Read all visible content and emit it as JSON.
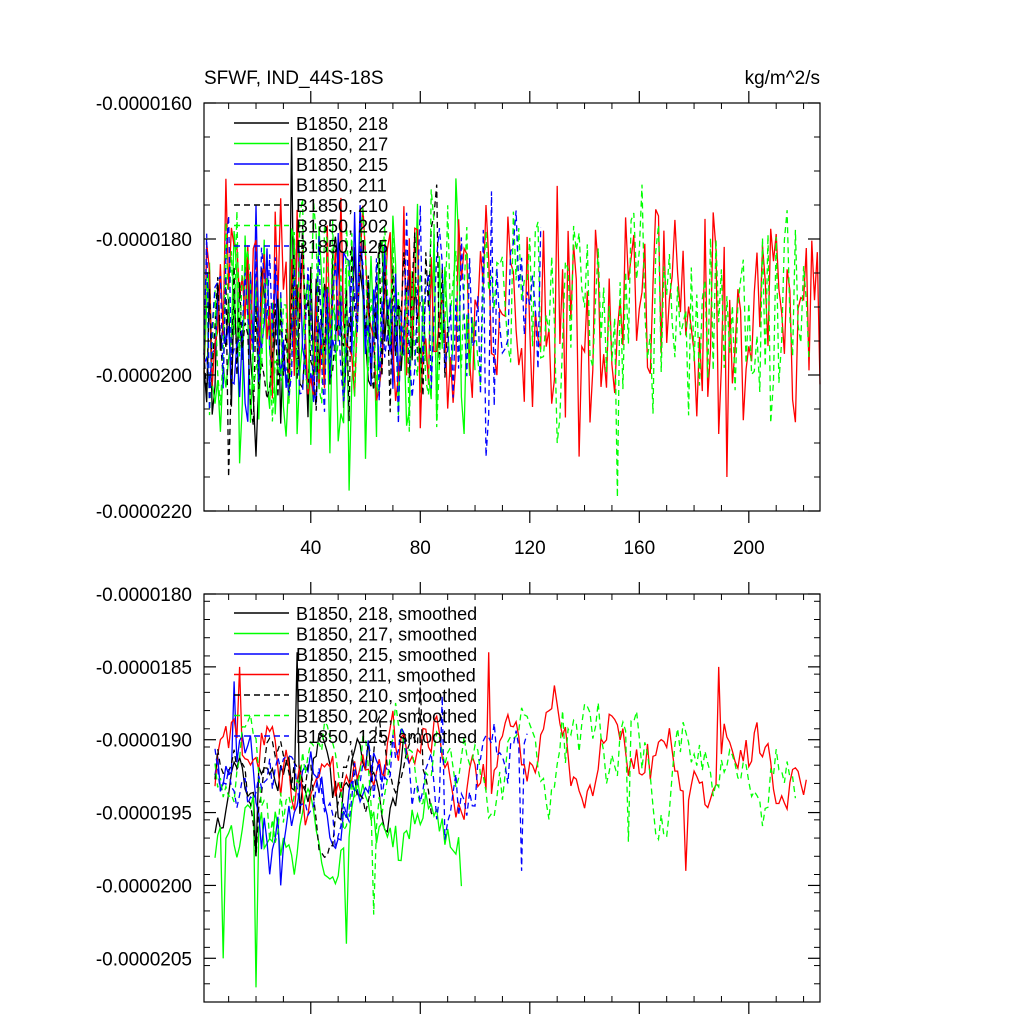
{
  "chart_data": [
    {
      "type": "line",
      "title_left": "SFWF, IND_44S-18S",
      "title_right": "kg/m^2/s",
      "xlim": [
        1,
        226
      ],
      "ylim": [
        -2.2e-05,
        -1.6e-05
      ],
      "x_ticks": [
        40,
        80,
        120,
        160,
        200
      ],
      "x_tick_labels": [
        "40",
        "80",
        "120",
        "160",
        "200"
      ],
      "y_ticks": [
        -1.6e-05,
        -1.8e-05,
        -2e-05,
        -2.2e-05
      ],
      "y_tick_labels": [
        "-0.0000160",
        "-0.0000180",
        "-0.0000200",
        "-0.0000220"
      ],
      "series": [
        {
          "name": "B1850, 218",
          "color": "#000000",
          "dash": "solid",
          "x_start": 1,
          "count": 80,
          "mean": -1.93e-05,
          "amp": 9e-07,
          "seed": 11,
          "anchors": [
            [
              2,
              -2.04e-05
            ],
            [
              33,
              -1.65e-05
            ],
            [
              20,
              -2.12e-05
            ]
          ]
        },
        {
          "name": "B1850, 217",
          "color": "#00ff00",
          "dash": "solid",
          "x_start": 1,
          "count": 100,
          "mean": -1.92e-05,
          "amp": 1.1e-06,
          "seed": 23,
          "anchors": [
            [
              54,
              -2.17e-05
            ],
            [
              14,
              -2.13e-05
            ]
          ]
        },
        {
          "name": "B1850, 215",
          "color": "#0000ff",
          "dash": "solid",
          "x_start": 1,
          "count": 72,
          "mean": -1.91e-05,
          "amp": 9e-07,
          "seed": 37,
          "anchors": [
            [
              20,
              -1.75e-05
            ]
          ]
        },
        {
          "name": "B1850, 211",
          "color": "#ff0000",
          "dash": "solid",
          "x_start": 1,
          "count": 226,
          "mean": -1.9e-05,
          "amp": 1e-06,
          "seed": 41,
          "anchors": [
            [
              192,
              -2.15e-05
            ],
            [
              138,
              -2.12e-05
            ],
            [
              104,
              -1.75e-05
            ]
          ]
        },
        {
          "name": "B1850, 210",
          "color": "#000000",
          "dash": "dash",
          "x_start": 1,
          "count": 90,
          "mean": -1.92e-05,
          "amp": 9e-07,
          "seed": 53,
          "anchors": [
            [
              86,
              -1.72e-05
            ],
            [
              10,
              -2.15e-05
            ]
          ]
        },
        {
          "name": "B1850, 202",
          "color": "#00ff00",
          "dash": "dash",
          "x_start": 1,
          "count": 222,
          "mean": -1.9e-05,
          "amp": 1e-06,
          "seed": 67,
          "anchors": [
            [
              152,
              -2.18e-05
            ],
            [
              161,
              -1.72e-05
            ],
            [
              130,
              -2.1e-05
            ]
          ]
        },
        {
          "name": "B1850, 125",
          "color": "#0000ff",
          "dash": "dash",
          "x_start": 1,
          "count": 124,
          "mean": -1.91e-05,
          "amp": 9e-07,
          "seed": 79,
          "anchors": [
            [
              106,
              -1.73e-05
            ],
            [
              104,
              -2.12e-05
            ]
          ]
        }
      ]
    },
    {
      "type": "line",
      "xlim": [
        1,
        226
      ],
      "ylim": [
        -2.08e-05,
        -1.8e-05
      ],
      "x_ticks": [
        40,
        80,
        120,
        160,
        200
      ],
      "x_tick_labels": [
        "",
        "",
        "",
        "",
        ""
      ],
      "y_ticks": [
        -1.8e-05,
        -1.85e-05,
        -1.9e-05,
        -1.95e-05,
        -2e-05,
        -2.05e-05
      ],
      "y_tick_labels": [
        "-0.0000180",
        "-0.0000185",
        "-0.0000190",
        "-0.0000195",
        "-0.0000200",
        "-0.0000205"
      ],
      "series": [
        {
          "name": "B1850, 218, smoothed",
          "color": "#000000",
          "dash": "solid",
          "x_start": 5,
          "count": 71,
          "mean": -1.93e-05,
          "amp": 3e-07,
          "seed": 12,
          "anchors": [
            [
              35,
              -1.84e-05
            ],
            [
              20,
              -1.98e-05
            ]
          ]
        },
        {
          "name": "B1850, 217, smoothed",
          "color": "#00ff00",
          "dash": "solid",
          "x_start": 5,
          "count": 91,
          "mean": -1.96e-05,
          "amp": 3e-07,
          "seed": 24,
          "anchors": [
            [
              20,
              -2.07e-05
            ],
            [
              8,
              -2.05e-05
            ],
            [
              53,
              -2.04e-05
            ]
          ]
        },
        {
          "name": "B1850, 215, smoothed",
          "color": "#0000ff",
          "dash": "solid",
          "x_start": 5,
          "count": 64,
          "mean": -1.94e-05,
          "amp": 3e-07,
          "seed": 38,
          "anchors": [
            [
              12,
              -1.86e-05
            ],
            [
              29,
              -2e-05
            ]
          ]
        },
        {
          "name": "B1850, 211, smoothed",
          "color": "#ff0000",
          "dash": "solid",
          "x_start": 5,
          "count": 217,
          "mean": -1.92e-05,
          "amp": 3e-07,
          "seed": 42,
          "anchors": [
            [
              189,
              -1.85e-05
            ],
            [
              177,
              -1.99e-05
            ],
            [
              105,
              -1.84e-05
            ],
            [
              14,
              -1.85e-05
            ]
          ]
        },
        {
          "name": "B1850, 210, smoothed",
          "color": "#000000",
          "dash": "dash",
          "x_start": 5,
          "count": 81,
          "mean": -1.93e-05,
          "amp": 3e-07,
          "seed": 54,
          "anchors": [
            [
              80,
              -1.86e-05
            ],
            [
              20,
              -1.98e-05
            ]
          ]
        },
        {
          "name": "B1850, 202, smoothed",
          "color": "#00ff00",
          "dash": "dash",
          "x_start": 5,
          "count": 213,
          "mean": -1.92e-05,
          "amp": 3e-07,
          "seed": 68,
          "anchors": [
            [
              63,
              -2.02e-05
            ],
            [
              132,
              -1.88e-05
            ],
            [
              156,
              -1.97e-05
            ]
          ]
        },
        {
          "name": "B1850, 125, smoothed",
          "color": "#0000ff",
          "dash": "dash",
          "x_start": 5,
          "count": 115,
          "mean": -1.93e-05,
          "amp": 3e-07,
          "seed": 80,
          "anchors": [
            [
              117,
              -1.99e-05
            ],
            [
              88,
              -1.87e-05
            ]
          ]
        }
      ]
    }
  ]
}
